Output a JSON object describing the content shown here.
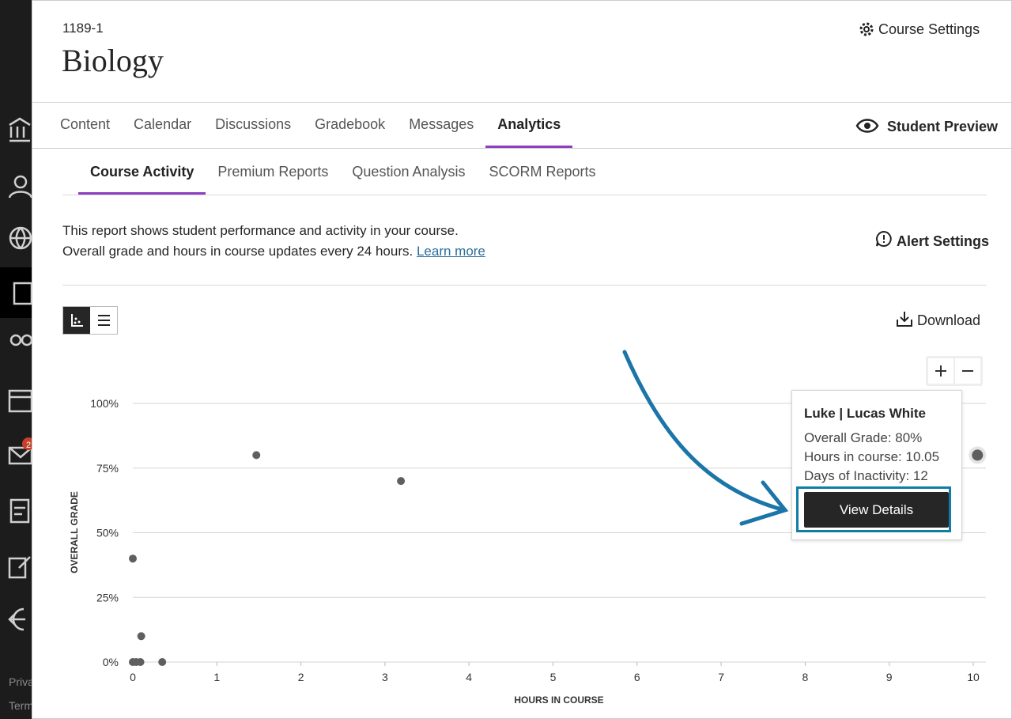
{
  "sidebar": {
    "footer_links": [
      "Priva",
      "Term"
    ],
    "badge": "2"
  },
  "header": {
    "course_id": "1189-1",
    "title": "Biology",
    "settings": "Course Settings"
  },
  "nav": {
    "tabs": [
      "Content",
      "Calendar",
      "Discussions",
      "Gradebook",
      "Messages",
      "Analytics"
    ],
    "active": 5,
    "preview": "Student Preview"
  },
  "subnav": {
    "tabs": [
      "Course Activity",
      "Premium Reports",
      "Question Analysis",
      "SCORM Reports"
    ],
    "active": 0
  },
  "description": {
    "line1": "This report shows student performance and activity in your course.",
    "line2": "Overall grade and hours in course updates every 24 hours.",
    "link": "Learn more"
  },
  "actions": {
    "alert": "Alert Settings",
    "download": "Download"
  },
  "chart_data": {
    "type": "scatter",
    "x_label": "HOURS IN COURSE",
    "y_label": "OVERALL GRADE",
    "x": [
      0,
      1.47,
      3.19,
      0.1,
      0,
      0.04,
      0.09,
      0.35,
      10.05
    ],
    "values": [
      40,
      80,
      70,
      10,
      0,
      0,
      0,
      0,
      80
    ],
    "color": "#5f5f5f",
    "highlight": 8,
    "xlim": [
      0,
      10
    ],
    "ylim": [
      0,
      100
    ],
    "xticks": [
      0,
      1,
      2,
      3,
      4,
      5,
      6,
      7,
      8,
      9,
      10
    ],
    "yticks": [
      {
        "value": 0,
        "label": "0%"
      },
      {
        "value": 25,
        "label": "25%"
      },
      {
        "value": 50,
        "label": "50%"
      },
      {
        "value": 75,
        "label": "75%"
      },
      {
        "value": 100,
        "label": "100%"
      }
    ],
    "grid": true
  },
  "tooltip": {
    "title": "Luke | Lucas White",
    "lines": [
      "Overall Grade: 80%",
      "Hours in course: 10.05",
      "Days of Inactivity: 12"
    ],
    "button": "View Details"
  }
}
